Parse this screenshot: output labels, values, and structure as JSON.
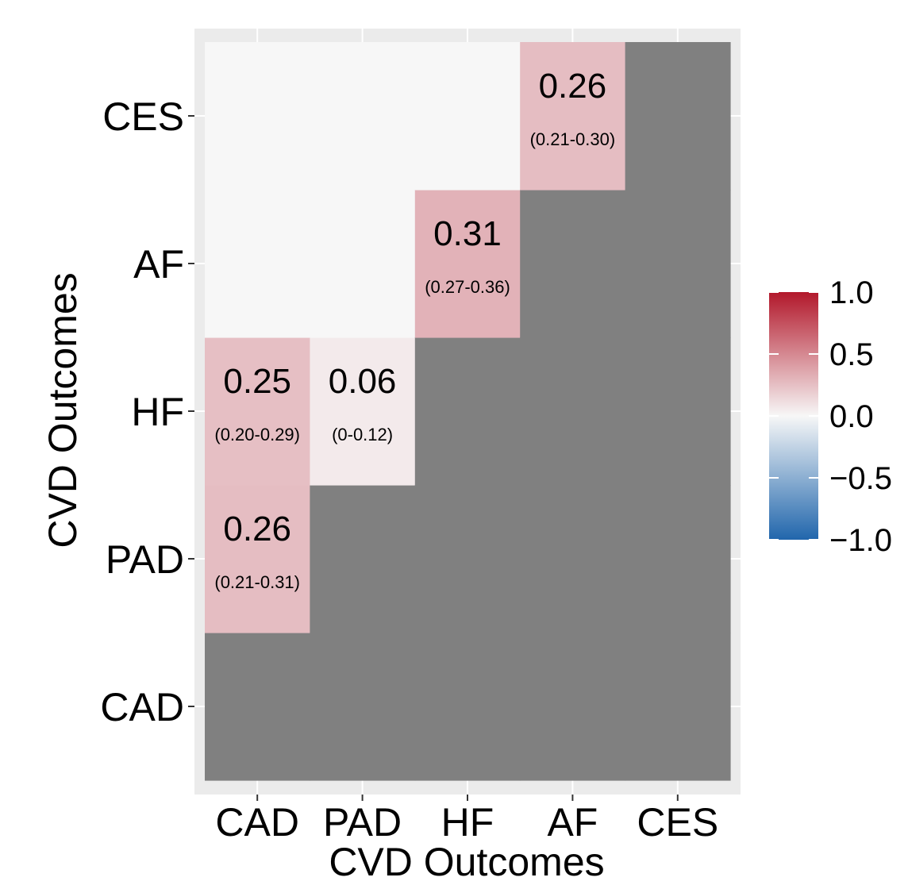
{
  "chart_data": {
    "type": "heatmap",
    "x_categories": [
      "CAD",
      "PAD",
      "HF",
      "AF",
      "CES"
    ],
    "y_categories": [
      "CAD",
      "PAD",
      "HF",
      "AF",
      "CES"
    ],
    "xlabel": "CVD Outcomes",
    "ylabel": "CVD Outcomes",
    "value_range": [
      -1.0,
      1.0
    ],
    "legend": {
      "position": "right",
      "ticks": [
        "1.0",
        "0.5",
        "0.0",
        "−0.5",
        "−1.0"
      ],
      "tick_values": [
        1.0,
        0.5,
        0.0,
        -0.5,
        -1.0
      ]
    },
    "cells": [
      {
        "x": "CAD",
        "y": "PAD",
        "value": 0.26,
        "value_label": "0.26",
        "ci_label": "(0.21-0.31)"
      },
      {
        "x": "CAD",
        "y": "HF",
        "value": 0.25,
        "value_label": "0.25",
        "ci_label": "(0.20-0.29)"
      },
      {
        "x": "PAD",
        "y": "HF",
        "value": 0.06,
        "value_label": "0.06",
        "ci_label": "(0-0.12)"
      },
      {
        "x": "HF",
        "y": "AF",
        "value": 0.31,
        "value_label": "0.31",
        "ci_label": "(0.27-0.36)"
      },
      {
        "x": "AF",
        "y": "CES",
        "value": 0.26,
        "value_label": "0.26",
        "ci_label": "(0.21-0.30)"
      }
    ],
    "colors": {
      "masked": "#808080",
      "empty": "#f7f7f7",
      "panel_background": "#ebebeb",
      "gridline": "#ffffff",
      "low": "#2166ac",
      "mid": "#f7f7f7",
      "high": "#b2182b"
    }
  }
}
